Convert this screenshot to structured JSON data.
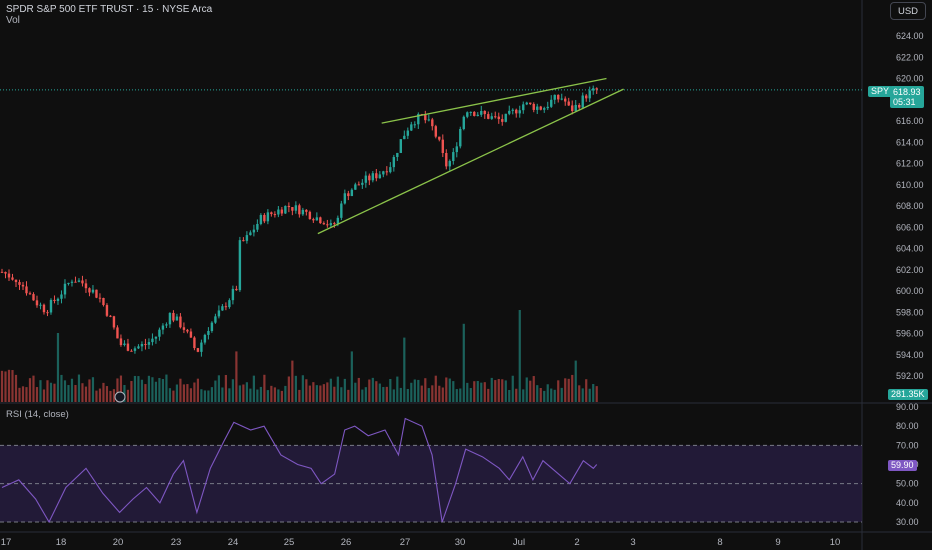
{
  "header": {
    "symbol_line": "SPDR S&P 500 ETF TRUST · 15 · NYSE Arca",
    "volume_label": "Vol"
  },
  "currency_button": "USD",
  "rsi_header": "RSI (14, close)",
  "price_tags": {
    "ticker": "SPY",
    "last_price": "618.93",
    "countdown": "05:31",
    "volume_value": "281.35K",
    "rsi_value": "59.90"
  },
  "colors": {
    "background": "#0f0f0f",
    "up_candle": "#26a69a",
    "down_candle": "#ef5350",
    "trendline": "#8bc34a",
    "rsi_line": "#7e57c2",
    "rsi_band": "#2a1f45",
    "price_line": "#26a69a"
  },
  "chart_data": [
    {
      "type": "candlestick",
      "name": "price",
      "x_axis": {
        "ticks": [
          "17",
          "18",
          "20",
          "23",
          "24",
          "25",
          "26",
          "27",
          "30",
          "Jul",
          "2",
          "3",
          "8",
          "9",
          "10"
        ]
      },
      "y_axis": {
        "ticks": [
          "592.00",
          "594.00",
          "596.00",
          "598.00",
          "600.00",
          "602.00",
          "604.00",
          "606.00",
          "608.00",
          "610.00",
          "612.00",
          "614.00",
          "616.00",
          "618.00",
          "620.00",
          "622.00",
          "624.00"
        ],
        "range": [
          590.2,
          626.2
        ],
        "position": "right"
      },
      "last_price": 618.93,
      "close_path": [
        {
          "x": 0.0,
          "y": 601.8
        },
        {
          "x": 0.5,
          "y": 601.0
        },
        {
          "x": 1.0,
          "y": 599.0
        },
        {
          "x": 1.3,
          "y": 598.2
        },
        {
          "x": 1.7,
          "y": 599.6
        },
        {
          "x": 2.1,
          "y": 601.2
        },
        {
          "x": 2.5,
          "y": 600.6
        },
        {
          "x": 2.9,
          "y": 599.4
        },
        {
          "x": 3.2,
          "y": 597.6
        },
        {
          "x": 3.5,
          "y": 595.0
        },
        {
          "x": 3.9,
          "y": 594.6
        },
        {
          "x": 4.3,
          "y": 595.0
        },
        {
          "x": 4.6,
          "y": 595.8
        },
        {
          "x": 5.0,
          "y": 597.8
        },
        {
          "x": 5.4,
          "y": 596.6
        },
        {
          "x": 5.8,
          "y": 594.2
        },
        {
          "x": 6.1,
          "y": 596.4
        },
        {
          "x": 6.5,
          "y": 598.0
        },
        {
          "x": 6.8,
          "y": 599.5
        },
        {
          "x": 6.98,
          "y": 600.3
        },
        {
          "x": 7.02,
          "y": 604.2
        },
        {
          "x": 7.3,
          "y": 605.0
        },
        {
          "x": 7.7,
          "y": 606.8
        },
        {
          "x": 8.1,
          "y": 607.4
        },
        {
          "x": 8.5,
          "y": 608.0
        },
        {
          "x": 8.9,
          "y": 607.6
        },
        {
          "x": 9.3,
          "y": 607.0
        },
        {
          "x": 9.6,
          "y": 606.6
        },
        {
          "x": 9.8,
          "y": 606.0
        },
        {
          "x": 10.0,
          "y": 606.8
        },
        {
          "x": 10.1,
          "y": 608.6
        },
        {
          "x": 10.4,
          "y": 609.6
        },
        {
          "x": 10.8,
          "y": 610.4
        },
        {
          "x": 11.2,
          "y": 611.0
        },
        {
          "x": 11.6,
          "y": 612.0
        },
        {
          "x": 11.9,
          "y": 614.4
        },
        {
          "x": 12.2,
          "y": 616.0
        },
        {
          "x": 12.5,
          "y": 616.4
        },
        {
          "x": 12.8,
          "y": 615.4
        },
        {
          "x": 13.0,
          "y": 614.0
        },
        {
          "x": 13.2,
          "y": 611.8
        },
        {
          "x": 13.4,
          "y": 612.4
        },
        {
          "x": 13.6,
          "y": 614.8
        },
        {
          "x": 13.8,
          "y": 617.2
        },
        {
          "x": 14.1,
          "y": 616.8
        },
        {
          "x": 14.5,
          "y": 616.4
        },
        {
          "x": 14.9,
          "y": 616.0
        },
        {
          "x": 15.2,
          "y": 616.8
        },
        {
          "x": 15.5,
          "y": 617.6
        },
        {
          "x": 15.8,
          "y": 617.4
        },
        {
          "x": 16.1,
          "y": 617.2
        },
        {
          "x": 16.4,
          "y": 618.0
        },
        {
          "x": 16.7,
          "y": 618.2
        },
        {
          "x": 16.9,
          "y": 617.0
        },
        {
          "x": 17.1,
          "y": 617.4
        },
        {
          "x": 17.4,
          "y": 618.5
        },
        {
          "x": 17.7,
          "y": 618.9
        }
      ],
      "trendlines": [
        {
          "from": {
            "x": 11.3,
            "y": 615.8
          },
          "to": {
            "x": 17.99,
            "y": 620.0
          }
        },
        {
          "from": {
            "x": 9.4,
            "y": 605.4
          },
          "to": {
            "x": 18.5,
            "y": 619.0
          }
        }
      ]
    },
    {
      "type": "bar",
      "name": "volume",
      "current_value": "281.35K",
      "spikes": [
        {
          "x": 1.7,
          "v": 0.75
        },
        {
          "x": 7.0,
          "v": 0.55
        },
        {
          "x": 8.6,
          "v": 0.45
        },
        {
          "x": 10.4,
          "v": 0.55
        },
        {
          "x": 12.0,
          "v": 0.7
        },
        {
          "x": 13.7,
          "v": 0.85
        },
        {
          "x": 15.4,
          "v": 1.0
        },
        {
          "x": 17.1,
          "v": 0.45
        }
      ]
    },
    {
      "type": "line",
      "name": "rsi",
      "y_axis": {
        "ticks": [
          "30.00",
          "40.00",
          "50.00",
          "60.00",
          "70.00",
          "80.00",
          "90.00"
        ],
        "range": [
          27,
          92
        ]
      },
      "levels": [
        70,
        50,
        30
      ],
      "current_value": 59.9,
      "points": [
        {
          "x": 0.0,
          "y": 48
        },
        {
          "x": 0.5,
          "y": 52
        },
        {
          "x": 1.0,
          "y": 42
        },
        {
          "x": 1.4,
          "y": 30
        },
        {
          "x": 1.9,
          "y": 48
        },
        {
          "x": 2.5,
          "y": 58
        },
        {
          "x": 3.0,
          "y": 45
        },
        {
          "x": 3.5,
          "y": 35
        },
        {
          "x": 3.9,
          "y": 42
        },
        {
          "x": 4.3,
          "y": 48
        },
        {
          "x": 4.7,
          "y": 40
        },
        {
          "x": 5.1,
          "y": 55
        },
        {
          "x": 5.4,
          "y": 62
        },
        {
          "x": 5.8,
          "y": 35
        },
        {
          "x": 6.2,
          "y": 58
        },
        {
          "x": 6.6,
          "y": 72
        },
        {
          "x": 6.9,
          "y": 82
        },
        {
          "x": 7.4,
          "y": 78
        },
        {
          "x": 7.8,
          "y": 80
        },
        {
          "x": 8.3,
          "y": 65
        },
        {
          "x": 8.8,
          "y": 60
        },
        {
          "x": 9.2,
          "y": 58
        },
        {
          "x": 9.5,
          "y": 50
        },
        {
          "x": 9.9,
          "y": 55
        },
        {
          "x": 10.2,
          "y": 78
        },
        {
          "x": 10.5,
          "y": 80
        },
        {
          "x": 10.9,
          "y": 75
        },
        {
          "x": 11.4,
          "y": 78
        },
        {
          "x": 11.8,
          "y": 65
        },
        {
          "x": 12.0,
          "y": 84
        },
        {
          "x": 12.5,
          "y": 80
        },
        {
          "x": 12.8,
          "y": 65
        },
        {
          "x": 13.1,
          "y": 30
        },
        {
          "x": 13.5,
          "y": 50
        },
        {
          "x": 13.8,
          "y": 68
        },
        {
          "x": 14.3,
          "y": 64
        },
        {
          "x": 14.8,
          "y": 58
        },
        {
          "x": 15.1,
          "y": 52
        },
        {
          "x": 15.5,
          "y": 64
        },
        {
          "x": 15.8,
          "y": 52
        },
        {
          "x": 16.1,
          "y": 62
        },
        {
          "x": 16.5,
          "y": 56
        },
        {
          "x": 16.9,
          "y": 50
        },
        {
          "x": 17.3,
          "y": 62
        },
        {
          "x": 17.6,
          "y": 58
        },
        {
          "x": 17.7,
          "y": 60
        }
      ]
    }
  ]
}
